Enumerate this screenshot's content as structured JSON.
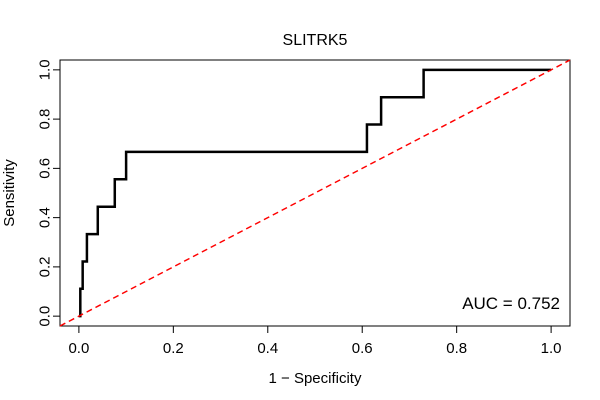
{
  "chart_data": {
    "type": "line",
    "title": "SLITRK5",
    "xlabel": "1 − Specificity",
    "ylabel": "Sensitivity",
    "xlim": [
      -0.04,
      1.04
    ],
    "ylim": [
      -0.04,
      1.04
    ],
    "xticks": [
      0.0,
      0.2,
      0.4,
      0.6,
      0.8,
      1.0
    ],
    "xtick_labels": [
      "0.0",
      "0.2",
      "0.4",
      "0.6",
      "0.8",
      "1.0"
    ],
    "yticks": [
      0.0,
      0.2,
      0.4,
      0.6,
      0.8,
      1.0
    ],
    "ytick_labels": [
      "0.0",
      "0.2",
      "0.4",
      "0.6",
      "0.8",
      "1.0"
    ],
    "grid": false,
    "annotation": "AUC = 0.752",
    "series": [
      {
        "color": "#000000",
        "style": "solid",
        "x": [
          0.0,
          0.003,
          0.003,
          0.008,
          0.008,
          0.017,
          0.017,
          0.04,
          0.04,
          0.076,
          0.076,
          0.1,
          0.1,
          0.61,
          0.61,
          0.64,
          0.64,
          0.73,
          0.73,
          1.0
        ],
        "y": [
          0.0,
          0.0,
          0.111,
          0.111,
          0.222,
          0.222,
          0.333,
          0.333,
          0.444,
          0.444,
          0.556,
          0.556,
          0.667,
          0.667,
          0.778,
          0.778,
          0.889,
          0.889,
          1.0,
          1.0
        ]
      },
      {
        "color": "#ff0000",
        "style": "dashed",
        "x": [
          -0.04,
          1.04
        ],
        "y": [
          -0.04,
          1.04
        ]
      }
    ]
  }
}
